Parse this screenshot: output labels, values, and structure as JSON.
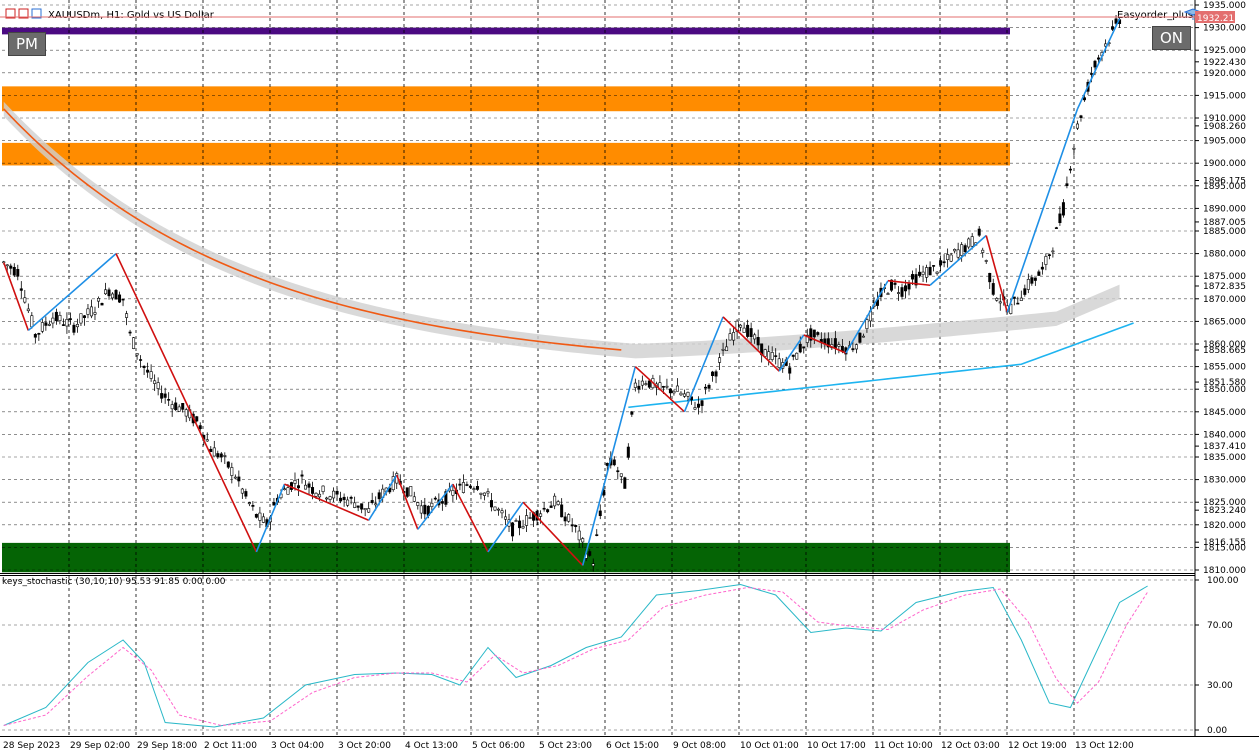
{
  "window": {
    "symbol": "XAUUSDm",
    "timeframe": "H1",
    "description": "Gold vs US Dollar",
    "title_text": "XAUUSDm, H1:  Gold vs US Dollar"
  },
  "buttons": {
    "pm": "PM",
    "on": "ON"
  },
  "easyorder_label": "Easyorder_plus",
  "current_price": "1932.217",
  "colors": {
    "bull_zigzag": "#1e8fe6",
    "bear_zigzag": "#d01010",
    "ma_orange": "#f05a14",
    "ma_blue": "#1eb4f0",
    "zone_purple": "#4b0a82",
    "zone_orange": "#ff8c00",
    "zone_green": "#056405",
    "stoch_main": "#2ab8c8",
    "stoch_signal": "#ff66cc"
  },
  "chart_data": [
    {
      "type": "candlestick",
      "title": "XAUUSDm, H1:  Gold vs US Dollar",
      "ylim": [
        1810.0,
        1935.0
      ],
      "y_ticks": [
        1935.0,
        1930.0,
        1925.0,
        1922.43,
        1920.0,
        1915.0,
        1910.0,
        1908.26,
        1905.0,
        1900.0,
        1896.175,
        1895.0,
        1890.0,
        1887.005,
        1885.0,
        1880.0,
        1875.0,
        1872.835,
        1870.0,
        1865.0,
        1860.0,
        1858.665,
        1855.0,
        1851.58,
        1850.0,
        1845.0,
        1840.0,
        1837.41,
        1835.0,
        1830.0,
        1825.0,
        1823.24,
        1820.0,
        1816.155,
        1815.0,
        1810.0
      ],
      "x_ticks": [
        "28 Sep 2023",
        "29 Sep 02:00",
        "29 Sep 18:00",
        "2 Oct 11:00",
        "3 Oct 04:00",
        "3 Oct 20:00",
        "4 Oct 13:00",
        "5 Oct 06:00",
        "5 Oct 23:00",
        "6 Oct 15:00",
        "9 Oct 08:00",
        "10 Oct 01:00",
        "10 Oct 17:00",
        "11 Oct 10:00",
        "12 Oct 03:00",
        "12 Oct 19:00",
        "13 Oct 12:00"
      ],
      "price_path": [
        [
          0,
          1878
        ],
        [
          4,
          1876
        ],
        [
          9,
          1862
        ],
        [
          14,
          1866
        ],
        [
          20,
          1864
        ],
        [
          26,
          1868
        ],
        [
          30,
          1872
        ],
        [
          34,
          1870
        ],
        [
          36,
          1862
        ],
        [
          40,
          1855
        ],
        [
          44,
          1850
        ],
        [
          48,
          1847
        ],
        [
          52,
          1845
        ],
        [
          56,
          1842
        ],
        [
          59,
          1837
        ],
        [
          62,
          1835
        ],
        [
          66,
          1831
        ],
        [
          69,
          1826
        ],
        [
          72,
          1822
        ],
        [
          75,
          1820
        ],
        [
          78,
          1826
        ],
        [
          82,
          1829
        ],
        [
          85,
          1830
        ],
        [
          88,
          1828
        ],
        [
          92,
          1827
        ],
        [
          96,
          1826
        ],
        [
          100,
          1825
        ],
        [
          104,
          1823
        ],
        [
          108,
          1827
        ],
        [
          112,
          1830
        ],
        [
          116,
          1827
        ],
        [
          120,
          1823
        ],
        [
          124,
          1825
        ],
        [
          128,
          1827
        ],
        [
          132,
          1829
        ],
        [
          135,
          1829
        ],
        [
          138,
          1826
        ],
        [
          142,
          1822
        ],
        [
          145,
          1819
        ],
        [
          149,
          1821
        ],
        [
          153,
          1823
        ],
        [
          157,
          1825
        ],
        [
          160,
          1822
        ],
        [
          163,
          1819
        ],
        [
          166,
          1814
        ],
        [
          168,
          1812
        ],
        [
          170,
          1822
        ],
        [
          172,
          1833
        ],
        [
          174,
          1834
        ],
        [
          176,
          1830
        ],
        [
          177,
          1829
        ],
        [
          180,
          1851
        ],
        [
          183,
          1852
        ],
        [
          187,
          1850
        ],
        [
          191,
          1850
        ],
        [
          195,
          1848
        ],
        [
          198,
          1846
        ],
        [
          201,
          1851
        ],
        [
          204,
          1856
        ],
        [
          207,
          1861
        ],
        [
          210,
          1865
        ],
        [
          213,
          1862
        ],
        [
          217,
          1858
        ],
        [
          221,
          1856
        ],
        [
          224,
          1855
        ],
        [
          227,
          1859
        ],
        [
          230,
          1862
        ],
        [
          233,
          1861
        ],
        [
          237,
          1860
        ],
        [
          241,
          1859
        ],
        [
          244,
          1861
        ],
        [
          247,
          1866
        ],
        [
          250,
          1871
        ],
        [
          253,
          1873
        ],
        [
          256,
          1872
        ],
        [
          259,
          1874
        ],
        [
          263,
          1876
        ],
        [
          267,
          1877
        ],
        [
          271,
          1880
        ],
        [
          275,
          1882
        ],
        [
          278,
          1884
        ],
        [
          280,
          1878
        ],
        [
          282,
          1872
        ],
        [
          285,
          1869
        ],
        [
          287,
          1868
        ],
        [
          290,
          1871
        ],
        [
          293,
          1874
        ],
        [
          296,
          1876
        ],
        [
          299,
          1882
        ],
        [
          302,
          1890
        ],
        [
          304,
          1900
        ],
        [
          306,
          1908
        ],
        [
          308,
          1914
        ],
        [
          310,
          1920
        ],
        [
          313,
          1925
        ],
        [
          316,
          1929
        ],
        [
          318,
          1932
        ]
      ]
    },
    {
      "type": "line",
      "title": "keys_stochastic (30,10,10) 95.53 91.85 0.00 0.00",
      "ylim": [
        0,
        100
      ],
      "y_ticks": [
        100.0,
        70.0,
        30.0,
        0.0
      ],
      "series": [
        {
          "name": "main",
          "values": [
            [
              0,
              3
            ],
            [
              12,
              15
            ],
            [
              24,
              45
            ],
            [
              34,
              60
            ],
            [
              40,
              45
            ],
            [
              46,
              5
            ],
            [
              60,
              2
            ],
            [
              74,
              8
            ],
            [
              86,
              30
            ],
            [
              100,
              37
            ],
            [
              112,
              38
            ],
            [
              122,
              37
            ],
            [
              130,
              30
            ],
            [
              138,
              55
            ],
            [
              146,
              35
            ],
            [
              156,
              43
            ],
            [
              166,
              55
            ],
            [
              176,
              62
            ],
            [
              186,
              90
            ],
            [
              198,
              93
            ],
            [
              210,
              97
            ],
            [
              220,
              90
            ],
            [
              230,
              65
            ],
            [
              240,
              68
            ],
            [
              250,
              66
            ],
            [
              260,
              85
            ],
            [
              272,
              92
            ],
            [
              282,
              95
            ],
            [
              290,
              60
            ],
            [
              298,
              18
            ],
            [
              304,
              15
            ],
            [
              310,
              45
            ],
            [
              318,
              85
            ],
            [
              326,
              96
            ]
          ]
        },
        {
          "name": "signal",
          "values": [
            [
              0,
              3
            ],
            [
              12,
              10
            ],
            [
              24,
              36
            ],
            [
              34,
              55
            ],
            [
              42,
              40
            ],
            [
              50,
              10
            ],
            [
              62,
              3
            ],
            [
              76,
              6
            ],
            [
              88,
              25
            ],
            [
              100,
              35
            ],
            [
              112,
              38
            ],
            [
              122,
              38
            ],
            [
              132,
              32
            ],
            [
              140,
              50
            ],
            [
              148,
              38
            ],
            [
              158,
              43
            ],
            [
              168,
              54
            ],
            [
              178,
              60
            ],
            [
              188,
              82
            ],
            [
              200,
              90
            ],
            [
              212,
              95
            ],
            [
              222,
              92
            ],
            [
              232,
              72
            ],
            [
              242,
              69
            ],
            [
              252,
              67
            ],
            [
              262,
              80
            ],
            [
              274,
              90
            ],
            [
              284,
              94
            ],
            [
              292,
              72
            ],
            [
              300,
              34
            ],
            [
              306,
              18
            ],
            [
              312,
              32
            ],
            [
              320,
              70
            ],
            [
              326,
              92
            ]
          ]
        }
      ]
    }
  ]
}
